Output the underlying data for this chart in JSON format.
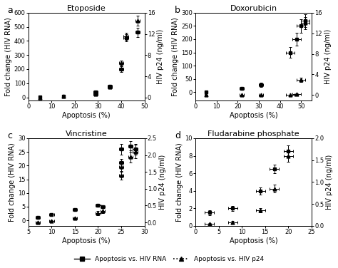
{
  "panels": [
    {
      "label": "a",
      "title": "Etoposide",
      "xlim": [
        0,
        50
      ],
      "xticks": [
        0,
        10,
        20,
        30,
        40,
        50
      ],
      "ylim_left": [
        -20,
        600
      ],
      "yticks_left": [
        0,
        100,
        200,
        300,
        400,
        500,
        600
      ],
      "ylim_right": [
        -0.5,
        16
      ],
      "yticks_right": [
        0,
        4,
        8,
        12,
        16
      ],
      "rna_x": [
        5,
        15,
        29,
        35,
        40,
        42,
        47
      ],
      "rna_y": [
        2,
        10,
        40,
        80,
        200,
        420,
        460
      ],
      "rna_xerr": [
        0.5,
        0.5,
        1,
        1,
        1,
        1,
        1
      ],
      "rna_yerr": [
        2,
        5,
        6,
        10,
        20,
        25,
        35
      ],
      "p24_x": [
        5,
        15,
        29,
        35,
        40,
        42,
        47
      ],
      "p24_y": [
        0.0,
        0.2,
        0.6,
        2.0,
        6.5,
        11.5,
        14.5
      ],
      "p24_xerr": [
        0.5,
        0.5,
        1,
        1,
        1,
        1,
        1
      ],
      "p24_yerr": [
        0.05,
        0.1,
        0.15,
        0.3,
        0.5,
        0.7,
        0.9
      ],
      "rna_fit_p0": [
        480,
        40,
        0.4,
        2
      ],
      "p24_fit_p0": [
        15,
        42,
        0.5,
        0
      ]
    },
    {
      "label": "b",
      "title": "Doxorubicin",
      "xlim": [
        0,
        55
      ],
      "xticks": [
        0,
        10,
        20,
        30,
        40,
        50
      ],
      "ylim_left": [
        -30,
        300
      ],
      "yticks_left": [
        0,
        50,
        100,
        150,
        200,
        250,
        300
      ],
      "ylim_right": [
        -1,
        16
      ],
      "yticks_right": [
        0,
        4,
        8,
        12,
        16
      ],
      "rna_x": [
        5,
        22,
        31,
        45,
        48,
        50,
        52
      ],
      "rna_y": [
        2,
        15,
        28,
        150,
        200,
        250,
        270
      ],
      "rna_xerr": [
        0.5,
        1,
        1,
        2,
        2,
        2,
        2
      ],
      "rna_yerr": [
        2,
        4,
        8,
        20,
        25,
        25,
        25
      ],
      "p24_x": [
        5,
        22,
        31,
        45,
        48,
        50,
        52
      ],
      "p24_y": [
        0.02,
        0.02,
        0.02,
        0.05,
        0.2,
        3.0,
        14.0
      ],
      "p24_xerr": [
        0.5,
        1,
        1,
        2,
        2,
        2,
        2
      ],
      "p24_yerr": [
        0.01,
        0.01,
        0.01,
        0.04,
        0.1,
        0.4,
        1.2
      ],
      "rna_fit_p0": [
        280,
        48,
        0.3,
        2
      ],
      "p24_fit_p0": [
        15,
        52,
        0.8,
        0
      ]
    },
    {
      "label": "c",
      "title": "Vincristine",
      "xlim": [
        5,
        30
      ],
      "xticks": [
        5,
        10,
        15,
        20,
        25,
        30
      ],
      "ylim_left": [
        -2,
        30
      ],
      "yticks_left": [
        0,
        5,
        10,
        15,
        20,
        25,
        30
      ],
      "ylim_right": [
        -0.1,
        2.5
      ],
      "yticks_right": [
        0.0,
        0.5,
        1.0,
        1.5,
        2.0,
        2.5
      ],
      "rna_x": [
        7,
        10,
        15,
        20,
        21,
        25,
        25,
        27,
        28
      ],
      "rna_y": [
        1,
        2,
        4,
        5.5,
        5,
        21,
        26,
        27,
        26
      ],
      "rna_xerr": [
        0.5,
        0.5,
        0.5,
        0.5,
        0.5,
        0.5,
        0.5,
        0.5,
        0.5
      ],
      "rna_yerr": [
        0.3,
        0.3,
        0.4,
        0.5,
        0.5,
        1.5,
        2,
        2,
        2
      ],
      "p24_x": [
        7,
        10,
        15,
        20,
        21,
        25,
        25,
        27,
        28
      ],
      "p24_y": [
        0.0,
        0.04,
        0.12,
        0.28,
        0.35,
        1.4,
        1.65,
        1.95,
        2.1
      ],
      "p24_xerr": [
        0.5,
        0.5,
        0.5,
        0.5,
        0.5,
        0.5,
        0.5,
        0.5,
        0.5
      ],
      "p24_yerr": [
        0.02,
        0.02,
        0.04,
        0.06,
        0.07,
        0.12,
        0.15,
        0.18,
        0.2
      ],
      "rna_fit_p0": [
        27,
        25,
        0.6,
        1
      ],
      "p24_fit_p0": [
        2.2,
        25,
        0.6,
        0
      ]
    },
    {
      "label": "d",
      "title": "Fludarabine phosphate",
      "xlim": [
        0,
        25
      ],
      "xticks": [
        0,
        5,
        10,
        15,
        20,
        25
      ],
      "ylim_left": [
        0,
        10
      ],
      "yticks_left": [
        0,
        2,
        4,
        6,
        8,
        10
      ],
      "ylim_right": [
        0,
        2.0
      ],
      "yticks_right": [
        0.0,
        0.5,
        1.0,
        1.5,
        2.0
      ],
      "rna_x": [
        3,
        8,
        14,
        17,
        20
      ],
      "rna_y": [
        1.5,
        2.0,
        4.0,
        6.5,
        8.5
      ],
      "rna_xerr": [
        1,
        1,
        1,
        1,
        1
      ],
      "rna_yerr": [
        0.3,
        0.3,
        0.4,
        0.5,
        0.7
      ],
      "p24_x": [
        3,
        8,
        14,
        17,
        20
      ],
      "p24_y": [
        0.04,
        0.08,
        0.35,
        0.85,
        1.6
      ],
      "p24_xerr": [
        1,
        1,
        1,
        1,
        1
      ],
      "p24_yerr": [
        0.02,
        0.03,
        0.05,
        0.09,
        0.14
      ],
      "rna_fit_p0": [
        9,
        20,
        0.3,
        1
      ],
      "p24_fit_p0": [
        1.8,
        20,
        0.3,
        0
      ]
    }
  ],
  "legend_rna": "Apoptosis vs. HIV RNA",
  "legend_p24": "Apoptosis vs. HIV p24",
  "xlabel": "Apoptosis (%)",
  "ylabel_left": "Fold change (HIV RNA)",
  "ylabel_right": "HIV p24 (ng/ml)",
  "fontsize": 7
}
